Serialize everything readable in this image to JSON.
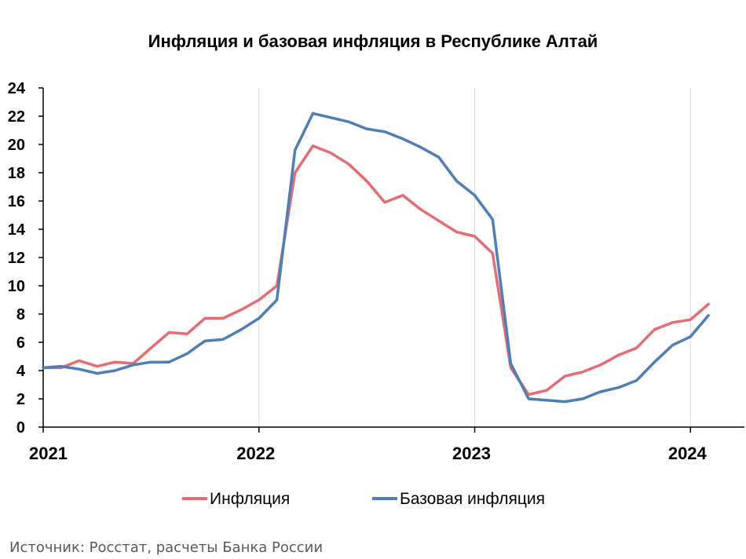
{
  "chart_data": {
    "type": "line",
    "title": "Инфляция и базовая инфляция в Республике Алтай",
    "xlabel": "",
    "ylabel": "",
    "x_ticks": [
      "2021",
      "2022",
      "2023",
      "2024"
    ],
    "x_tick_values": [
      2021.0,
      2022.0,
      2023.0,
      2024.0
    ],
    "xlim": [
      2021.0,
      2024.25
    ],
    "ylim": [
      0,
      24
    ],
    "y_ticks": [
      0,
      2,
      4,
      6,
      8,
      10,
      12,
      14,
      16,
      18,
      20,
      22,
      24
    ],
    "grid": "vertical at year ticks",
    "legend_position": "bottom",
    "x": [
      2021.0,
      2021.083,
      2021.167,
      2021.25,
      2021.333,
      2021.417,
      2021.5,
      2021.583,
      2021.667,
      2021.75,
      2021.833,
      2021.917,
      2022.0,
      2022.083,
      2022.167,
      2022.25,
      2022.333,
      2022.417,
      2022.5,
      2022.583,
      2022.667,
      2022.75,
      2022.833,
      2022.917,
      2023.0,
      2023.083,
      2023.167,
      2023.25,
      2023.333,
      2023.417,
      2023.5,
      2023.583,
      2023.667,
      2023.75,
      2023.833,
      2023.917,
      2024.0,
      2024.083
    ],
    "series": [
      {
        "name": "Инфляция",
        "color": "#E46C72",
        "values": [
          4.2,
          4.2,
          4.7,
          4.3,
          4.6,
          4.5,
          5.6,
          6.7,
          6.6,
          7.7,
          7.7,
          8.3,
          9.0,
          10.0,
          18.0,
          19.9,
          19.4,
          18.6,
          17.4,
          15.9,
          16.4,
          15.4,
          14.6,
          13.8,
          13.5,
          12.3,
          4.2,
          2.3,
          2.6,
          3.6,
          3.9,
          4.4,
          5.1,
          5.6,
          6.9,
          7.4,
          7.6,
          8.7
        ]
      },
      {
        "name": "Базовая инфляция",
        "color": "#4C7EB7",
        "values": [
          4.2,
          4.3,
          4.1,
          3.8,
          4.0,
          4.4,
          4.6,
          4.6,
          5.2,
          6.1,
          6.2,
          6.9,
          7.7,
          9.0,
          19.6,
          22.2,
          21.9,
          21.6,
          21.1,
          20.9,
          20.4,
          19.8,
          19.1,
          17.4,
          16.4,
          14.7,
          4.5,
          2.0,
          1.9,
          1.8,
          2.0,
          2.5,
          2.8,
          3.3,
          4.6,
          5.8,
          6.4,
          7.9
        ]
      }
    ]
  },
  "source": "Источник: Росстат, расчеты Банка России"
}
